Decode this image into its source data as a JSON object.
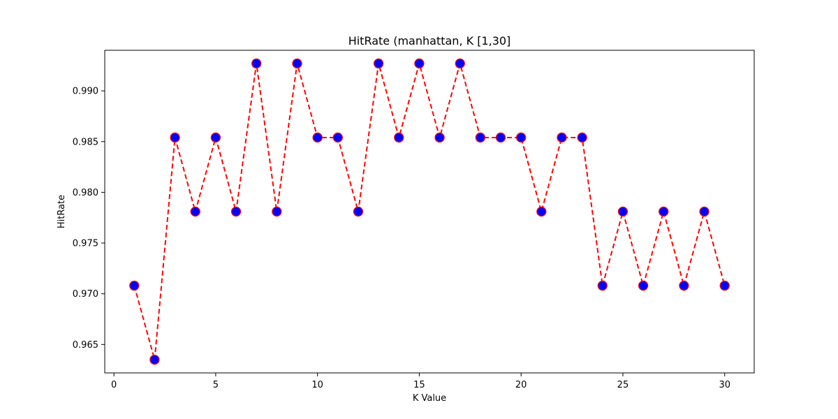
{
  "chart_data": {
    "type": "line",
    "title": "HitRate (manhattan, K [1,30]",
    "xlabel": "K Value",
    "ylabel": "HitRate",
    "xlim": [
      -0.45,
      31.45
    ],
    "ylim": [
      0.9622,
      0.994
    ],
    "xticks": [
      0,
      5,
      10,
      15,
      20,
      25,
      30
    ],
    "yticks": [
      0.965,
      0.97,
      0.975,
      0.98,
      0.985,
      0.99
    ],
    "ytick_labels": [
      "0.965",
      "0.970",
      "0.975",
      "0.980",
      "0.985",
      "0.990"
    ],
    "grid": false,
    "line_color": "#ff0000",
    "line_style": "dashed",
    "marker_face": "#0000ff",
    "marker_edge": "#ff0000",
    "series": [
      {
        "x": [
          1,
          2,
          3,
          4,
          5,
          6,
          7,
          8,
          9,
          10,
          11,
          12,
          13,
          14,
          15,
          16,
          17,
          18,
          19,
          20,
          21,
          22,
          23,
          24,
          25,
          26,
          27,
          28,
          29,
          30
        ],
        "values": [
          0.9708,
          0.9635,
          0.9854,
          0.9781,
          0.9854,
          0.9781,
          0.9927,
          0.9781,
          0.9927,
          0.9854,
          0.9854,
          0.9781,
          0.9927,
          0.9854,
          0.9927,
          0.9854,
          0.9927,
          0.9854,
          0.9854,
          0.9854,
          0.9781,
          0.9854,
          0.9854,
          0.9708,
          0.9781,
          0.9708,
          0.9781,
          0.9708,
          0.9781,
          0.9708
        ]
      }
    ]
  }
}
